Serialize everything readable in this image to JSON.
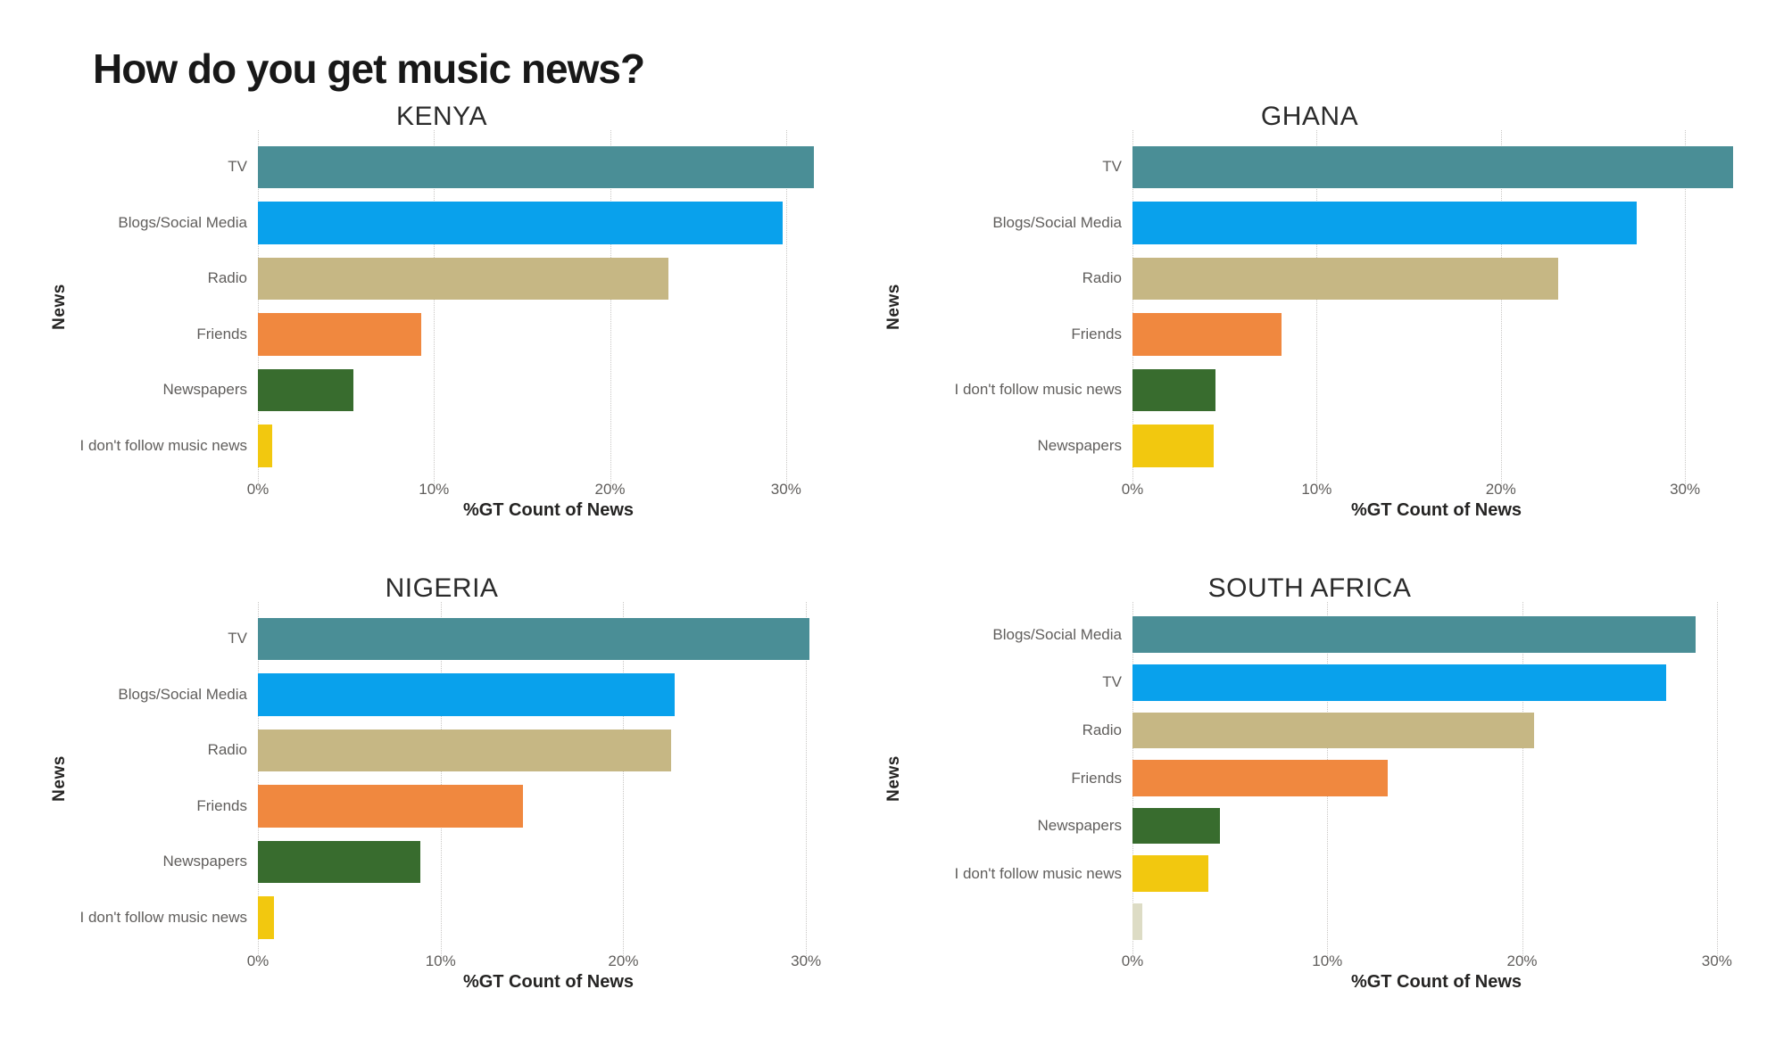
{
  "title": "How do you get music news?",
  "chart_data": [
    {
      "type": "bar",
      "orientation": "horizontal",
      "title": "KENYA",
      "ylabel": "News",
      "xlabel": "%GT Count of News",
      "categories": [
        "TV",
        "Blogs/Social Media",
        "Radio",
        "Friends",
        "Newspapers",
        "I don't follow music news"
      ],
      "values": [
        31.6,
        29.8,
        23.3,
        9.3,
        5.4,
        0.8
      ],
      "colors": [
        "#4A8E96",
        "#09A1EC",
        "#C6B784",
        "#F0883F",
        "#386C2E",
        "#F2C80F"
      ],
      "xmax": 33,
      "tick_values": [
        0,
        10,
        20,
        30
      ],
      "tick_labels": [
        "0%",
        "10%",
        "20%",
        "30%"
      ],
      "grid": "vertical-dotted",
      "legend": "none"
    },
    {
      "type": "bar",
      "orientation": "horizontal",
      "title": "GHANA",
      "ylabel": "News",
      "xlabel": "%GT Count of News",
      "categories": [
        "TV",
        "Blogs/Social Media",
        "Radio",
        "Friends",
        "I don't follow music news",
        "Newspapers"
      ],
      "values": [
        32.6,
        27.4,
        23.1,
        8.1,
        4.5,
        4.4
      ],
      "colors": [
        "#4A8E96",
        "#09A1EC",
        "#C6B784",
        "#F0883F",
        "#386C2E",
        "#F2C80F"
      ],
      "xmax": 33,
      "tick_values": [
        0,
        10,
        20,
        30
      ],
      "tick_labels": [
        "0%",
        "10%",
        "20%",
        "30%"
      ],
      "grid": "vertical-dotted",
      "legend": "none"
    },
    {
      "type": "bar",
      "orientation": "horizontal",
      "title": "NIGERIA",
      "ylabel": "News",
      "xlabel": "%GT Count of News",
      "categories": [
        "TV",
        "Blogs/Social Media",
        "Radio",
        "Friends",
        "Newspapers",
        "I don't follow music news"
      ],
      "values": [
        30.2,
        22.8,
        22.6,
        14.5,
        8.9,
        0.9
      ],
      "colors": [
        "#4A8E96",
        "#09A1EC",
        "#C6B784",
        "#F0883F",
        "#386C2E",
        "#F2C80F"
      ],
      "xmax": 31.8,
      "tick_values": [
        0,
        10,
        20,
        30
      ],
      "tick_labels": [
        "0%",
        "10%",
        "20%",
        "30%"
      ],
      "grid": "vertical-dotted",
      "legend": "none"
    },
    {
      "type": "bar",
      "orientation": "horizontal",
      "title": "SOUTH AFRICA",
      "ylabel": "News",
      "xlabel": "%GT Count of News",
      "categories": [
        "Blogs/Social Media",
        "TV",
        "Radio",
        "Friends",
        "Newspapers",
        "I don't follow music news",
        ""
      ],
      "values": [
        28.9,
        27.4,
        20.6,
        13.1,
        4.5,
        3.9,
        0.5
      ],
      "colors": [
        "#4A8E96",
        "#09A1EC",
        "#C6B784",
        "#F0883F",
        "#386C2E",
        "#F2C80F",
        "#DDDCC5"
      ],
      "xmax": 31.2,
      "tick_values": [
        0,
        10,
        20,
        30
      ],
      "tick_labels": [
        "0%",
        "10%",
        "20%",
        "30%"
      ],
      "grid": "vertical-dotted",
      "legend": "none"
    }
  ]
}
